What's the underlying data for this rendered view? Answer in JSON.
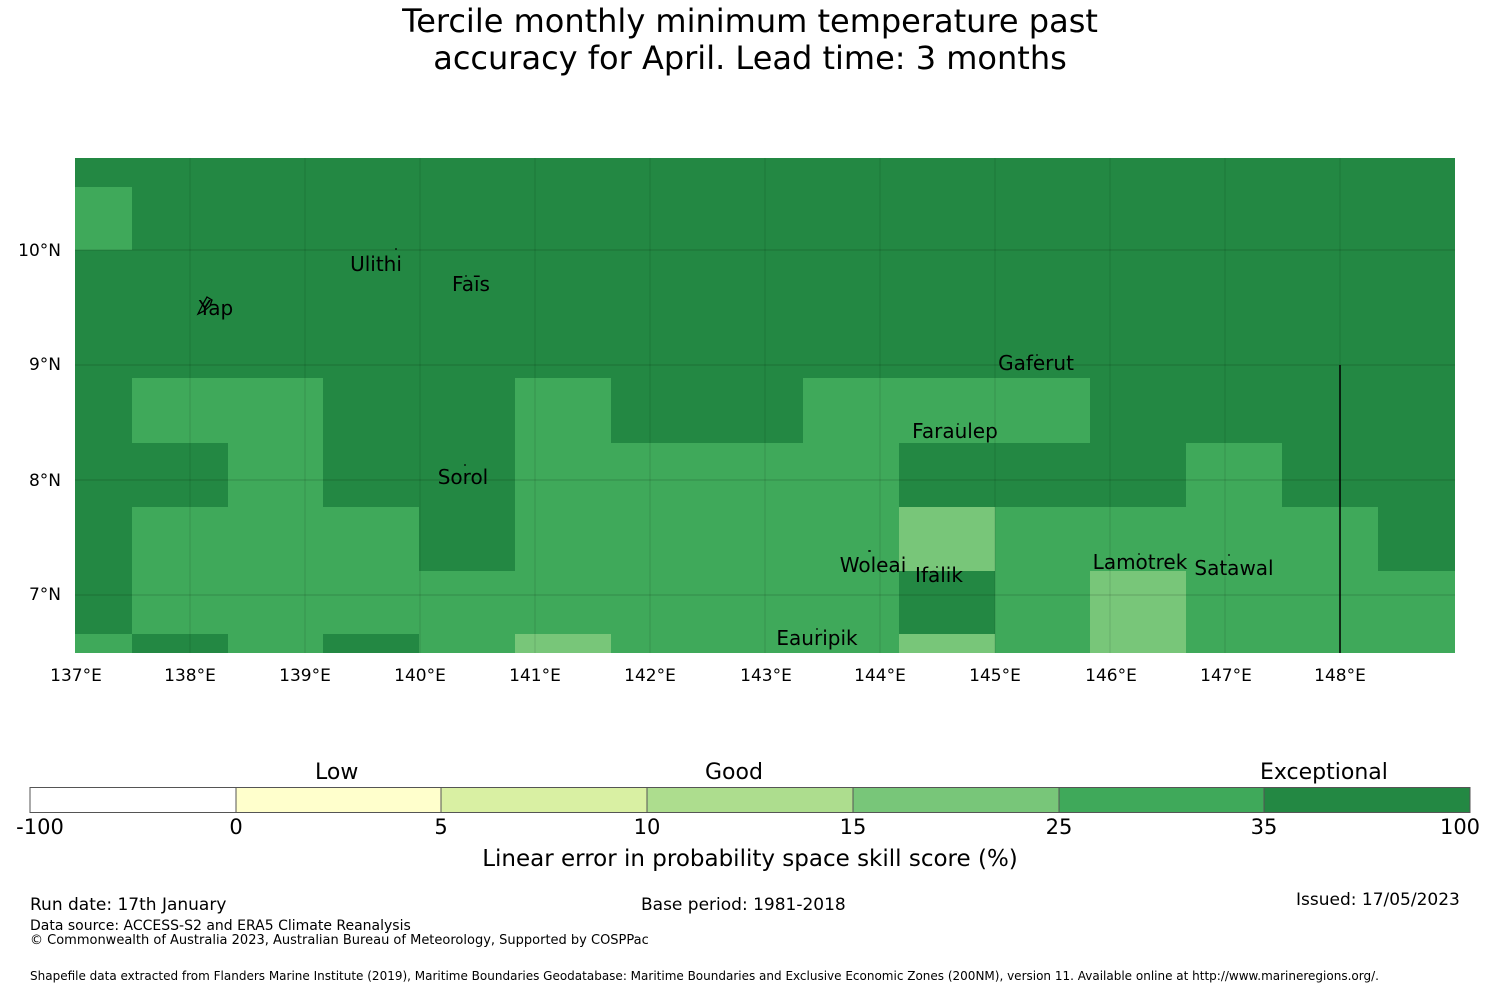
{
  "title_line1": "Tercile monthly minimum temperature past",
  "title_line2": "accuracy for April. Lead time: 3 months",
  "colors": {
    "exceptional": "#238843",
    "good_high": "#3fa95a",
    "good_mid": "#78c679",
    "land": "#000000"
  },
  "map": {
    "lon_ticks": [
      "137°E",
      "138°E",
      "139°E",
      "140°E",
      "141°E",
      "142°E",
      "143°E",
      "144°E",
      "145°E",
      "146°E",
      "147°E",
      "148°E"
    ],
    "lat_ticks": [
      "10°N",
      "9°N",
      "8°N",
      "7°N"
    ],
    "places": [
      {
        "name": "Ulithi"
      },
      {
        "name": "Faīs"
      },
      {
        "name": "Yap"
      },
      {
        "name": "Gaferut"
      },
      {
        "name": "Faraulep"
      },
      {
        "name": "Sorol"
      },
      {
        "name": "Woleai"
      },
      {
        "name": "Ifalik"
      },
      {
        "name": "Lamotrek"
      },
      {
        "name": "Satawal"
      },
      {
        "name": "Eauripik"
      }
    ]
  },
  "colorbar": {
    "category_labels": [
      "Low",
      "Good",
      "Exceptional"
    ],
    "tick_labels": [
      "-100",
      "0",
      "5",
      "10",
      "15",
      "25",
      "35",
      "100"
    ],
    "colors": [
      "#ffffff",
      "#ffffcc",
      "#d9f0a3",
      "#addd8e",
      "#78c679",
      "#3fa95a",
      "#238843"
    ],
    "xlabel": "Linear error in probability space skill score (%)"
  },
  "footer": {
    "run_date": "Run date: 17th January",
    "base_period": "Base period: 1981-2018",
    "issued": "Issued: 17/05/2023",
    "data_source": "Data source: ACCESS-S2 and ERA5 Climate Reanalysis",
    "copyright": "© Commonwealth of Australia 2023, Australian Bureau of Meteorology, Supported by COSPPac",
    "shapefile": "Shapefile data extracted from Flanders Marine Institute (2019), Maritime Boundaries Geodatabase: Maritime Boundaries and Exclusive Economic Zones (200NM), version 11. Available online at http://www.marineregions.org/."
  }
}
